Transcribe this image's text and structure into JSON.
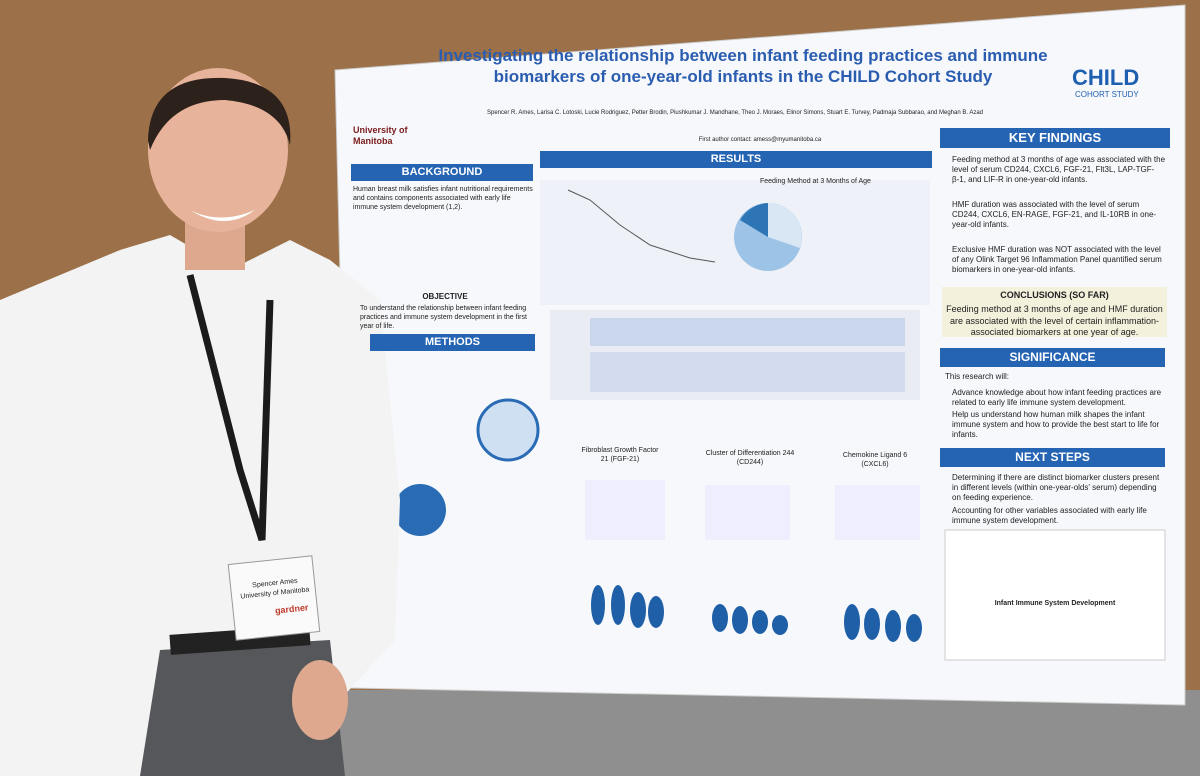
{
  "poster": {
    "title": "Investigating the relationship between infant feeding practices and immune biomarkers of one-year-old infants in the CHILD Cohort Study",
    "university": "University of Manitoba",
    "logo": {
      "name": "CHILD",
      "sub": "COHORT STUDY"
    },
    "authors": "Spencer R. Ames, Larisa C. Lotoski, Lucie Rodriguez, Petter Brodin, Piushkumar J. Mandhane, Theo J. Moraes, Elinor Simons, Stuart E. Turvey, Padmaja Subbarao, and Meghan B. Azad",
    "contact": "First author contact: amess@myumanitoba.ca",
    "sections": {
      "background": "BACKGROUND",
      "background_text": "Human breast milk satisfies infant nutritional requirements and contains components associated with early life immune system development (1,2).",
      "objective": "OBJECTIVE",
      "objective_text": "To understand the relationship between infant feeding practices and immune system development in the first year of life.",
      "methods": "METHODS",
      "results": "RESULTS",
      "results_panel": "Feeding Method at 3 Months of Age",
      "key_findings": "KEY FINDINGS",
      "key_findings_items": [
        "Feeding method at 3 months of age was associated with the level of serum CD244, CXCL6, FGF-21, Flt3L, LAP-TGF-β-1, and LIF-R in one-year-old infants.",
        "HMF duration was associated with the level of serum CD244, CXCL6, EN-RAGE, FGF-21, and IL-10RB in one-year-old infants.",
        "Exclusive HMF duration was NOT associated with the level of any Olink Target 96 Inflammation Panel quantified serum biomarkers in one-year-old infants."
      ],
      "conclusions": "CONCLUSIONS (SO FAR)",
      "conclusions_text": "Feeding method at 3 months of age and HMF duration are associated with the level of certain inflammation-associated biomarkers at one year of age.",
      "significance": "SIGNIFICANCE",
      "significance_intro": "This research will:",
      "significance_items": [
        "Advance knowledge about how infant feeding practices are related to early life immune system development.",
        "Help us understand how human milk shapes the infant immune system and how to provide the best start to life for infants."
      ],
      "next_steps": "NEXT STEPS",
      "next_steps_items": [
        "Determining if there are distinct biomarker clusters present in different levels (within one-year-olds' serum) depending on feeding experience.",
        "Accounting for other variables associated with early life immune system development."
      ],
      "diagram": "Infant Immune System Development",
      "plots": [
        "Fibroblast Growth Factor 21 (FGF-21)",
        "Cluster of Differentiation 244 (CD244)",
        "Chemokine Ligand 6 (CXCL6)"
      ]
    }
  },
  "badge": {
    "name": "Spencer Ames",
    "org": "University of Manitoba",
    "brand": "gardner"
  }
}
